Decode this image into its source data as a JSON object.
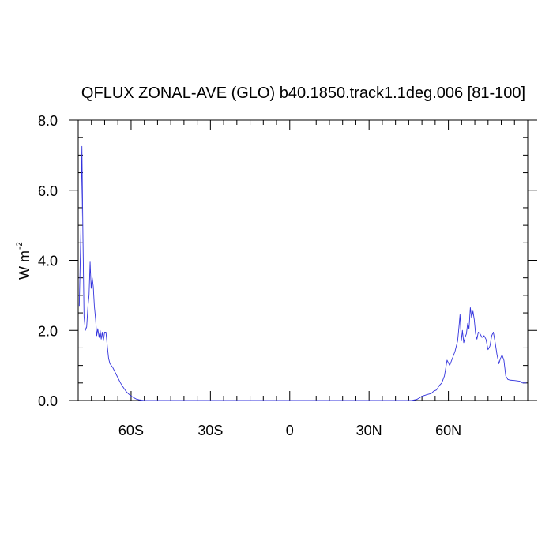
{
  "chart_data": {
    "type": "line",
    "title": "QFLUX ZONAL-AVE (GLO) b40.1850.track1.1deg.006 [81-100]",
    "ylabel": "W m",
    "ylabel_exponent": "-2",
    "xlim": [
      -80,
      90
    ],
    "ylim": [
      0,
      8
    ],
    "x_ticks": [
      {
        "value": -60,
        "label": "60S"
      },
      {
        "value": -30,
        "label": "30S"
      },
      {
        "value": 0,
        "label": "0"
      },
      {
        "value": 30,
        "label": "30N"
      },
      {
        "value": 60,
        "label": "60N"
      }
    ],
    "y_ticks": [
      {
        "value": 0,
        "label": "0.0"
      },
      {
        "value": 2,
        "label": "2.0"
      },
      {
        "value": 4,
        "label": "4.0"
      },
      {
        "value": 6,
        "label": "6.0"
      },
      {
        "value": 8,
        "label": "8.0"
      }
    ],
    "series": [
      {
        "color": "#3333dd",
        "points": [
          [
            -79.6,
            2.7
          ],
          [
            -79.0,
            4.8
          ],
          [
            -78.6,
            7.25
          ],
          [
            -78.2,
            4.6
          ],
          [
            -77.8,
            2.4
          ],
          [
            -77.3,
            2.0
          ],
          [
            -76.8,
            2.1
          ],
          [
            -76.3,
            2.7
          ],
          [
            -75.9,
            3.0
          ],
          [
            -75.5,
            3.95
          ],
          [
            -75.1,
            3.2
          ],
          [
            -74.7,
            3.5
          ],
          [
            -74.3,
            3.25
          ],
          [
            -73.9,
            2.7
          ],
          [
            -73.4,
            2.3
          ],
          [
            -73.0,
            1.85
          ],
          [
            -72.6,
            2.05
          ],
          [
            -72.1,
            1.8
          ],
          [
            -71.7,
            2.0
          ],
          [
            -71.3,
            1.75
          ],
          [
            -70.9,
            1.95
          ],
          [
            -70.5,
            1.7
          ],
          [
            -70.0,
            1.95
          ],
          [
            -69.5,
            1.95
          ],
          [
            -69.0,
            1.55
          ],
          [
            -68.5,
            1.2
          ],
          [
            -68.0,
            1.05
          ],
          [
            -67.0,
            0.95
          ],
          [
            -66.0,
            0.8
          ],
          [
            -65.0,
            0.65
          ],
          [
            -64.0,
            0.5
          ],
          [
            -63.0,
            0.38
          ],
          [
            -62.0,
            0.27
          ],
          [
            -61.0,
            0.19
          ],
          [
            -60.0,
            0.13
          ],
          [
            -59.0,
            0.08
          ],
          [
            -58.0,
            0.04
          ],
          [
            -57.0,
            0.02
          ],
          [
            -56.0,
            0.01
          ],
          [
            -55.0,
            0.0
          ],
          [
            -40.0,
            0.0
          ],
          [
            -20.0,
            0.0
          ],
          [
            0.0,
            0.0
          ],
          [
            20.0,
            0.0
          ],
          [
            40.0,
            0.0
          ],
          [
            46.0,
            0.0
          ],
          [
            48.0,
            0.03
          ],
          [
            49.0,
            0.07
          ],
          [
            50.0,
            0.12
          ],
          [
            52.0,
            0.17
          ],
          [
            53.5,
            0.2
          ],
          [
            54.5,
            0.27
          ],
          [
            55.5,
            0.3
          ],
          [
            56.5,
            0.42
          ],
          [
            57.5,
            0.5
          ],
          [
            58.5,
            0.7
          ],
          [
            59.5,
            1.15
          ],
          [
            60.5,
            1.0
          ],
          [
            61.5,
            1.2
          ],
          [
            62.5,
            1.4
          ],
          [
            63.5,
            1.7
          ],
          [
            64.0,
            2.1
          ],
          [
            64.4,
            2.45
          ],
          [
            64.9,
            1.7
          ],
          [
            65.3,
            2.0
          ],
          [
            65.8,
            1.65
          ],
          [
            66.3,
            1.8
          ],
          [
            66.8,
            1.9
          ],
          [
            67.3,
            2.2
          ],
          [
            67.8,
            2.05
          ],
          [
            68.3,
            2.65
          ],
          [
            68.8,
            2.35
          ],
          [
            69.3,
            2.55
          ],
          [
            69.8,
            2.3
          ],
          [
            70.3,
            1.9
          ],
          [
            70.8,
            1.75
          ],
          [
            71.3,
            1.95
          ],
          [
            72.0,
            1.9
          ],
          [
            72.7,
            1.8
          ],
          [
            73.5,
            1.85
          ],
          [
            74.2,
            1.75
          ],
          [
            75.0,
            1.45
          ],
          [
            75.7,
            1.55
          ],
          [
            76.4,
            1.85
          ],
          [
            77.0,
            1.95
          ],
          [
            77.7,
            1.65
          ],
          [
            78.4,
            1.3
          ],
          [
            79.1,
            1.05
          ],
          [
            79.7,
            1.2
          ],
          [
            80.3,
            1.3
          ],
          [
            81.0,
            1.15
          ],
          [
            81.7,
            0.7
          ],
          [
            82.5,
            0.6
          ],
          [
            83.5,
            0.58
          ],
          [
            85.0,
            0.57
          ],
          [
            87.0,
            0.55
          ],
          [
            88.0,
            0.5
          ],
          [
            89.5,
            0.5
          ]
        ]
      }
    ]
  }
}
